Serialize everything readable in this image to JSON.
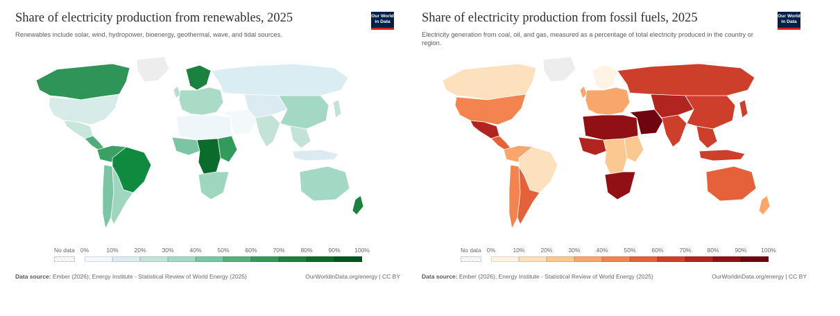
{
  "renewables": {
    "title": "Share of electricity production from renewables, 2025",
    "subtitle": "Renewables include solar, wind, hydropower, bioenergy, geothermal, wave, and tidal sources.",
    "logo_line1": "Our World",
    "logo_line2": "in Data",
    "legend": {
      "no_data": "No data",
      "ticks": [
        "0%",
        "10%",
        "20%",
        "30%",
        "40%",
        "50%",
        "60%",
        "70%",
        "80%",
        "90%",
        "100%"
      ],
      "colors": [
        "#f3f8fb",
        "#dcebf1",
        "#c3e2d8",
        "#a3d8c4",
        "#7cc5a4",
        "#56b07e",
        "#329a5a",
        "#1a823e",
        "#0b6b2d",
        "#03541e"
      ]
    },
    "source_label": "Data source:",
    "source_text": "Ember (2026); Energy Institute - Statistical Review of World Energy (2025)",
    "link": "OurWorldinData.org/energy | CC BY",
    "region_colors": {
      "canada": "#2e9457",
      "usa": "#d7ece8",
      "mexico": "#c7e6dc",
      "central_america": "#4fae78",
      "greenland": "#ededed",
      "south_america_north": "#3aa064",
      "brazil": "#108a3e",
      "southern_cone": "#9fd6c0",
      "chile": "#7cc5a4",
      "scandinavia": "#1a823e",
      "europe": "#a9dbc6",
      "uk": "#b4dfcf",
      "russia": "#d9edf3",
      "north_africa": "#eef6f9",
      "west_africa": "#7cc5a4",
      "central_africa": "#0b6b2d",
      "east_africa": "#329a5a",
      "southern_africa": "#9fd6c0",
      "middle_east": "#f3f8fb",
      "central_asia": "#dcebf1",
      "india": "#c3e2d8",
      "china": "#a3d8c4",
      "southeast_asia": "#c3e2d8",
      "japan": "#c3e2d8",
      "indonesia": "#dcebf1",
      "australia": "#a3d8c4",
      "new_zealand": "#1a823e"
    }
  },
  "fossil": {
    "title": "Share of electricity production from fossil fuels, 2025",
    "subtitle": "Electricity generation from coal, oil, and gas, measured as a percentage of total electricity produced in the country or region.",
    "logo_line1": "Our World",
    "logo_line2": "in Data",
    "legend": {
      "no_data": "No data",
      "ticks": [
        "0%",
        "10%",
        "20%",
        "30%",
        "40%",
        "50%",
        "60%",
        "70%",
        "80%",
        "90%",
        "100%"
      ],
      "colors": [
        "#fef3e4",
        "#fde0bd",
        "#fcc892",
        "#f9a66c",
        "#f3844f",
        "#e4613a",
        "#cd3e2b",
        "#b12420",
        "#911015",
        "#6f050e"
      ]
    },
    "source_label": "Data source:",
    "source_text": "Ember (2026); Energy Institute - Statistical Review of World Energy (2025)",
    "link": "OurWorldinData.org/energy | CC BY",
    "region_colors": {
      "canada": "#fde0bd",
      "usa": "#f3844f",
      "mexico": "#b12420",
      "central_america": "#e4613a",
      "greenland": "#ededed",
      "south_america_north": "#f9a66c",
      "brazil": "#fde0bd",
      "southern_cone": "#e4613a",
      "chile": "#f3844f",
      "scandinavia": "#fef3e4",
      "europe": "#f9a66c",
      "uk": "#f9a66c",
      "russia": "#cd3e2b",
      "north_africa": "#911015",
      "west_africa": "#b12420",
      "central_africa": "#fcc892",
      "east_africa": "#fcc892",
      "southern_africa": "#911015",
      "middle_east": "#6f050e",
      "central_asia": "#b12420",
      "india": "#cd3e2b",
      "china": "#cd3e2b",
      "southeast_asia": "#cd3e2b",
      "japan": "#cd3e2b",
      "indonesia": "#cd3e2b",
      "australia": "#e4613a",
      "new_zealand": "#f9a66c"
    }
  }
}
